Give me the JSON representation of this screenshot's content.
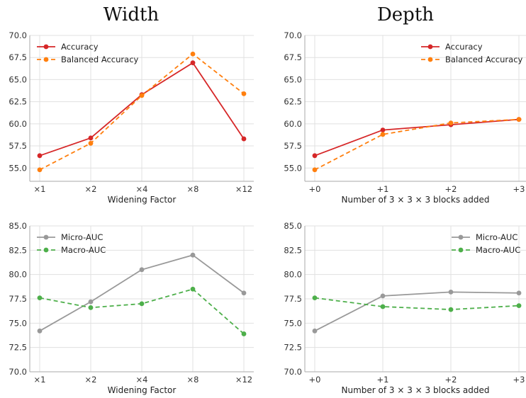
{
  "column_titles": [
    "Width",
    "Depth"
  ],
  "colors": {
    "accuracy": "#d62728",
    "balanced_accuracy": "#ff7f0e",
    "micro_auc": "#999999",
    "macro_auc": "#4daf4a",
    "grid": "#e0e0e0",
    "spine": "#aaaaaa"
  },
  "chart_data": [
    {
      "type": "line",
      "xlabel": "Widening Factor",
      "categories": [
        "×1",
        "×2",
        "×4",
        "×8",
        "×12"
      ],
      "ylim": [
        53.5,
        70.0
      ],
      "yticks": [
        "70.0",
        "67.5",
        "65.0",
        "62.5",
        "60.0",
        "57.5",
        "55.0"
      ],
      "grid": true,
      "legend_position": "top-left",
      "series": [
        {
          "name": "Accuracy",
          "style": "solid",
          "color_key": "accuracy",
          "values": [
            56.4,
            58.4,
            63.3,
            66.9,
            58.3
          ]
        },
        {
          "name": "Balanced Accuracy",
          "style": "dashed",
          "color_key": "balanced_accuracy",
          "values": [
            54.8,
            57.8,
            63.2,
            67.9,
            63.4
          ]
        }
      ]
    },
    {
      "type": "line",
      "xlabel": "Number of 3 × 3 × 3 blocks added",
      "categories": [
        "+0",
        "+1",
        "+2",
        "+3"
      ],
      "ylim": [
        53.5,
        70.0
      ],
      "yticks": [
        "70.0",
        "67.5",
        "65.0",
        "62.5",
        "60.0",
        "57.5",
        "55.0"
      ],
      "grid": true,
      "legend_position": "top-right",
      "series": [
        {
          "name": "Accuracy",
          "style": "solid",
          "color_key": "accuracy",
          "values": [
            56.4,
            59.3,
            59.9,
            60.5
          ]
        },
        {
          "name": "Balanced Accuracy",
          "style": "dashed",
          "color_key": "balanced_accuracy",
          "values": [
            54.8,
            58.8,
            60.1,
            60.5
          ]
        }
      ]
    },
    {
      "type": "line",
      "xlabel": "Widening Factor",
      "categories": [
        "×1",
        "×2",
        "×4",
        "×8",
        "×12"
      ],
      "ylim": [
        70.0,
        85.0
      ],
      "yticks": [
        "85.0",
        "82.5",
        "80.0",
        "77.5",
        "75.0",
        "72.5",
        "70.0"
      ],
      "grid": true,
      "legend_position": "top-left",
      "series": [
        {
          "name": "Micro-AUC",
          "style": "solid",
          "color_key": "micro_auc",
          "values": [
            74.2,
            77.2,
            80.5,
            82.0,
            78.1
          ]
        },
        {
          "name": "Macro-AUC",
          "style": "dashed",
          "color_key": "macro_auc",
          "values": [
            77.6,
            76.6,
            77.0,
            78.5,
            73.9
          ]
        }
      ]
    },
    {
      "type": "line",
      "xlabel": "Number of 3 × 3 × 3 blocks added",
      "categories": [
        "+0",
        "+1",
        "+2",
        "+3"
      ],
      "ylim": [
        70.0,
        85.0
      ],
      "yticks": [
        "85.0",
        "82.5",
        "80.0",
        "77.5",
        "75.0",
        "72.5",
        "70.0"
      ],
      "grid": true,
      "legend_position": "top-right",
      "series": [
        {
          "name": "Micro-AUC",
          "style": "solid",
          "color_key": "micro_auc",
          "values": [
            74.2,
            77.8,
            78.2,
            78.1
          ]
        },
        {
          "name": "Macro-AUC",
          "style": "dashed",
          "color_key": "macro_auc",
          "values": [
            77.6,
            76.7,
            76.4,
            76.8
          ]
        }
      ]
    }
  ]
}
